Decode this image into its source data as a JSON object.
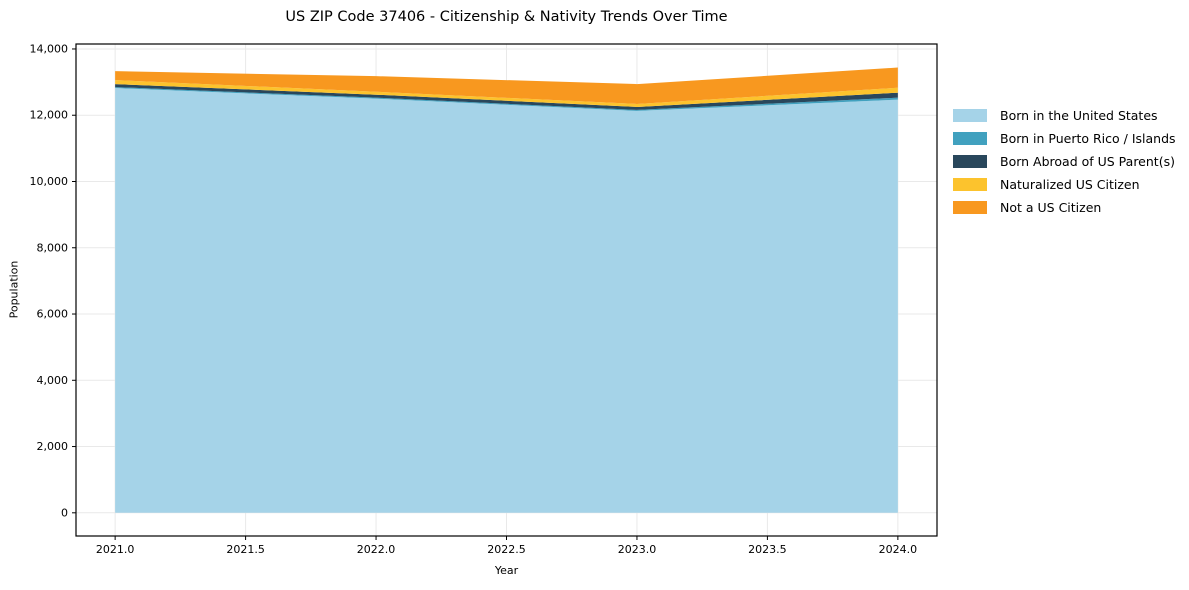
{
  "title": "US ZIP Code 37406 - Citizenship & Nativity Trends Over Time",
  "chart_data": {
    "type": "area",
    "stacked": true,
    "x": [
      2021,
      2022,
      2023,
      2024
    ],
    "series": [
      {
        "name": "Born in the United States",
        "color": "#a5d3e8",
        "values": [
          12820,
          12500,
          12130,
          12470
        ]
      },
      {
        "name": "Born in Puerto Rico / Islands",
        "color": "#41a1bf",
        "values": [
          30,
          30,
          30,
          60
        ]
      },
      {
        "name": "Born Abroad of US Parent(s)",
        "color": "#29475c",
        "values": [
          90,
          90,
          90,
          150
        ]
      },
      {
        "name": "Naturalized US Citizen",
        "color": "#fcc32d",
        "values": [
          120,
          90,
          90,
          150
        ]
      },
      {
        "name": "Not a US Citizen",
        "color": "#f8981f",
        "values": [
          270,
          470,
          600,
          610
        ]
      }
    ],
    "totals": [
      13330,
      13180,
      12940,
      13440
    ],
    "xlabel": "Year",
    "ylabel": "Population",
    "xlim": [
      2020.85,
      2024.15
    ],
    "ylim": [
      -700,
      14150
    ],
    "xticks": [
      2021.0,
      2021.5,
      2022.0,
      2022.5,
      2023.0,
      2023.5,
      2024.0
    ],
    "xtick_labels": [
      "2021.0",
      "2021.5",
      "2022.0",
      "2022.5",
      "2023.0",
      "2023.5",
      "2024.0"
    ],
    "yticks": [
      0,
      2000,
      4000,
      6000,
      8000,
      10000,
      12000,
      14000
    ],
    "ytick_labels": [
      "0",
      "2,000",
      "4,000",
      "6,000",
      "8,000",
      "10,000",
      "12,000",
      "14,000"
    ],
    "grid": true,
    "grid_color": "#e9e9e9",
    "frame_color": "#000000",
    "tick_label_color": "#000000",
    "legend_position": "right"
  }
}
